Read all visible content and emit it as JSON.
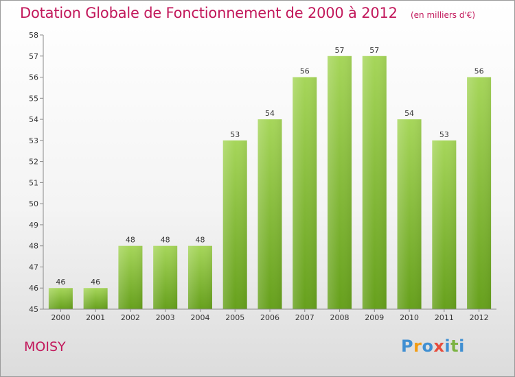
{
  "chart_data": {
    "type": "bar",
    "title": "Dotation Globale de Fonctionnement de 2000 à 2012",
    "unit": "(en milliers d'€)",
    "categories": [
      "2000",
      "2001",
      "2002",
      "2003",
      "2004",
      "2005",
      "2006",
      "2007",
      "2008",
      "2009",
      "2010",
      "2011",
      "2012"
    ],
    "values": [
      46,
      46,
      48,
      48,
      48,
      53,
      54,
      56,
      57,
      57,
      54,
      53,
      56
    ],
    "ylim": [
      45,
      58
    ],
    "yticks": [
      45,
      46,
      47,
      48,
      49,
      50,
      51,
      52,
      53,
      54,
      55,
      56,
      57,
      58
    ],
    "xlabel": "",
    "ylabel": "",
    "grid": false,
    "colors": {
      "bar_top": "#a6d65a",
      "bar_bottom": "#66a01c",
      "title": "#c2185b"
    }
  },
  "location": "MOISY",
  "logo": {
    "text": "Proxiti",
    "colors": [
      "#3f8fd2",
      "#f39c12",
      "#3f8fd2",
      "#e74c3c",
      "#3f8fd2",
      "#7cb342",
      "#3f8fd2"
    ]
  }
}
